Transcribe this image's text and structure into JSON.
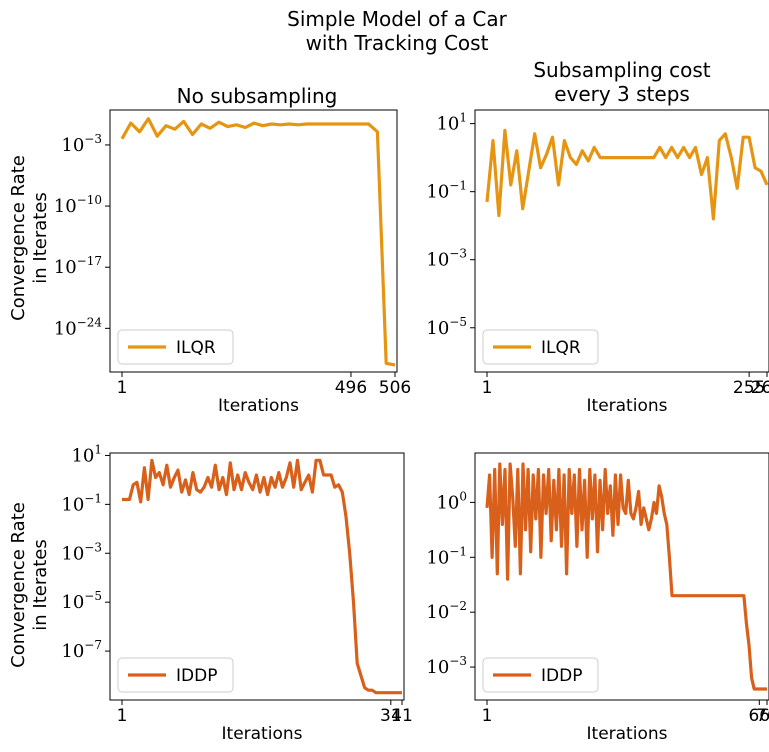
{
  "figure": {
    "title_line1": "Simple Model of a Car",
    "title_line2": "with Tracking Cost",
    "row_ylabel_line1": "Convergence Rate",
    "row_ylabel_line2": "in Iterates",
    "col1_title": "No subsampling",
    "col2_title_line1": "Subsampling cost",
    "col2_title_line2": "every 3 steps"
  },
  "colors": {
    "ilqr": "#e69512",
    "iddp": "#d9601a"
  },
  "chart_data": [
    {
      "type": "line",
      "title": "No subsampling",
      "xlabel": "Iterations",
      "ylabel": "Convergence Rate in Iterates",
      "yscale": "log",
      "ylim_exp": [
        -29,
        1
      ],
      "y_ticks": [
        {
          "exp": -3,
          "label": "10",
          "sup": "−3"
        },
        {
          "exp": -10,
          "label": "10",
          "sup": "−10"
        },
        {
          "exp": -17,
          "label": "10",
          "sup": "−17"
        },
        {
          "exp": -24,
          "label": "10",
          "sup": "−24"
        }
      ],
      "x_ticks": [
        "1",
        "496",
        "506"
      ],
      "legend": "lower-left",
      "series": [
        {
          "name": "ILQR",
          "x": [
            1,
            2,
            3,
            4,
            5,
            6,
            7,
            8,
            9,
            10,
            11,
            12,
            13,
            14,
            15,
            16,
            17,
            18,
            19,
            20,
            30,
            60,
            120,
            250,
            400,
            470,
            490,
            496,
            500,
            503,
            506,
            508
          ],
          "y_exp": [
            -2.3,
            -0.5,
            -1.5,
            0,
            -2,
            -0.8,
            -1.2,
            -0.3,
            -1.8,
            -0.6,
            -1.1,
            -0.4,
            -0.9,
            -0.7,
            -1,
            -0.5,
            -0.8,
            -0.6,
            -0.7,
            -0.6,
            -0.7,
            -0.6,
            -0.6,
            -0.6,
            -0.6,
            -0.6,
            -0.6,
            -0.6,
            -0.6,
            -1.5,
            -28,
            -28.2
          ]
        }
      ]
    },
    {
      "type": "line",
      "title": "Subsampling cost every 3 steps",
      "xlabel": "Iterations",
      "ylabel": "",
      "yscale": "log",
      "ylim_exp": [
        -6.3,
        1.4
      ],
      "y_ticks": [
        {
          "exp": 1,
          "label": "10",
          "sup": "1"
        },
        {
          "exp": -1,
          "label": "10",
          "sup": "−1"
        },
        {
          "exp": -3,
          "label": "10",
          "sup": "−3"
        },
        {
          "exp": -5,
          "label": "10",
          "sup": "−5"
        }
      ],
      "x_ticks": [
        "1",
        "255",
        "265"
      ],
      "legend": "lower-left",
      "series": [
        {
          "name": "ILQR",
          "x": [
            1,
            1.2,
            1.4,
            1.6,
            1.8,
            2,
            2.3,
            2.6,
            3,
            3.5,
            4,
            4.5,
            5,
            6,
            7,
            8,
            9,
            10,
            11,
            12,
            14,
            16,
            18,
            20,
            30,
            60,
            120,
            180,
            220,
            230,
            235,
            240,
            245,
            248,
            250,
            252,
            253,
            254,
            255,
            256,
            257,
            258,
            259,
            260,
            261,
            262,
            265,
            266
          ],
          "y_exp": [
            -1.3,
            0.5,
            -1.7,
            0.8,
            -0.8,
            0.2,
            -1.5,
            -0.4,
            0.7,
            -0.3,
            0.1,
            0.6,
            -0.8,
            0.5,
            0,
            -0.2,
            0.2,
            -0.1,
            0.3,
            0,
            0,
            0,
            0,
            0,
            0,
            0,
            0,
            0,
            0,
            0.3,
            0,
            0.3,
            0,
            0.3,
            0,
            0.3,
            -0.5,
            0,
            -1.8,
            0.5,
            0.7,
            0,
            -0.9,
            0.6,
            0.6,
            -0.3,
            -0.4,
            -0.8
          ]
        }
      ]
    },
    {
      "type": "line",
      "title": "",
      "xlabel": "Iterations",
      "ylabel": "Convergence Rate in Iterates",
      "yscale": "log",
      "ylim_exp": [
        -9,
        1.1
      ],
      "y_ticks": [
        {
          "exp": 1,
          "label": "10",
          "sup": "1"
        },
        {
          "exp": -1,
          "label": "10",
          "sup": "−1"
        },
        {
          "exp": -3,
          "label": "10",
          "sup": "−3"
        },
        {
          "exp": -5,
          "label": "10",
          "sup": "−5"
        },
        {
          "exp": -7,
          "label": "10",
          "sup": "−7"
        }
      ],
      "x_ticks": [
        "1",
        "31",
        "41"
      ],
      "legend": "lower-left",
      "series": [
        {
          "name": "IDDP",
          "x": [
            1,
            1.3,
            1.5,
            1.7,
            1.9,
            2.2,
            2.5,
            2.8,
            3.1,
            3.4,
            3.7,
            4,
            4.3,
            4.6,
            5,
            5.3,
            5.6,
            6,
            6.3,
            6.6,
            7,
            7.3,
            7.6,
            8,
            8.3,
            8.6,
            9,
            9.3,
            9.6,
            10,
            10.5,
            11,
            11.5,
            12,
            12.5,
            13,
            13.5,
            14,
            14.5,
            15,
            15.5,
            16,
            16.5,
            17,
            17.5,
            18,
            18.5,
            19,
            19.5,
            20,
            20.5,
            21,
            21.5,
            22,
            23,
            24,
            25,
            26,
            27,
            28,
            29,
            30,
            31,
            32,
            33,
            34,
            35,
            36,
            37,
            38,
            39,
            40,
            40.5,
            41,
            41.5,
            42
          ],
          "y_exp": [
            -0.8,
            -0.8,
            -0.8,
            -0.2,
            -0.1,
            -0.9,
            0.5,
            -0.8,
            0.8,
            0.1,
            0.3,
            -0.2,
            0.6,
            -0.3,
            0.1,
            0.4,
            -0.5,
            0,
            -0.6,
            0.3,
            -0.4,
            -0.5,
            -0.3,
            0.1,
            -0.3,
            0.6,
            -0.4,
            0.1,
            -0.6,
            0.7,
            -0.4,
            0.2,
            -0.4,
            0.3,
            -0.1,
            -0.4,
            0.2,
            -0.5,
            0.1,
            -0.6,
            0.1,
            -0.3,
            0.3,
            -0.3,
            0.1,
            0.7,
            -0.3,
            0.8,
            -0.4,
            -0.1,
            0.2,
            -0.5,
            0.8,
            0.8,
            0.2,
            0.2,
            0.2,
            -0.3,
            -0.2,
            -0.5,
            -1.5,
            -3,
            -5,
            -7.5,
            -8,
            -8.5,
            -8.6,
            -8.6,
            -8.7,
            -8.7,
            -8.7,
            -8.7,
            -8.7,
            -8.7,
            -8.7,
            -8.7
          ]
        }
      ]
    },
    {
      "type": "line",
      "title": "",
      "xlabel": "Iterations",
      "ylabel": "",
      "yscale": "log",
      "ylim_exp": [
        -3.6,
        0.9
      ],
      "y_ticks": [
        {
          "exp": 0,
          "label": "10",
          "sup": "0"
        },
        {
          "exp": -1,
          "label": "10",
          "sup": "−1"
        },
        {
          "exp": -2,
          "label": "10",
          "sup": "−2"
        },
        {
          "exp": -3,
          "label": "10",
          "sup": "−3"
        }
      ],
      "x_ticks": [
        "1",
        "66",
        "76"
      ],
      "legend": "lower-left",
      "series": [
        {
          "name": "IDDP",
          "x": [
            1,
            1.4,
            1.8,
            2.2,
            2.6,
            3,
            3.4,
            3.8,
            4.2,
            4.6,
            5,
            5.4,
            5.8,
            6.2,
            6.6,
            7,
            7.4,
            7.8,
            8.2,
            8.6,
            9,
            9.4,
            9.8,
            10.2,
            10.6,
            11,
            11.4,
            11.8,
            12.2,
            12.6,
            13,
            13.4,
            13.8,
            14.2,
            14.6,
            15,
            15.4,
            15.8,
            16.2,
            16.6,
            17,
            17.4,
            17.8,
            18.2,
            18.6,
            19,
            19.4,
            19.8,
            20.2,
            20.6,
            21,
            21.4,
            21.8,
            22.2,
            22.6,
            23,
            24,
            25,
            26,
            27,
            28,
            29,
            30,
            31,
            32,
            33,
            34,
            35,
            36,
            37,
            38,
            39,
            40,
            41,
            42,
            43,
            44,
            45,
            46,
            47,
            48,
            49,
            50,
            51,
            52,
            53,
            54,
            55,
            56,
            57,
            58,
            59,
            60,
            61,
            62,
            63,
            64,
            65,
            66,
            67,
            68,
            69,
            70,
            71,
            72,
            73,
            74,
            75,
            76,
            77
          ],
          "y_exp": [
            -0.1,
            0.5,
            -1,
            0.6,
            -1.3,
            0.7,
            -0.4,
            0.6,
            -1.4,
            0.7,
            0.1,
            -0.8,
            0.6,
            -1.3,
            0.7,
            -0.5,
            0.6,
            -0.9,
            0.5,
            -0.3,
            0.6,
            -1,
            0.5,
            -0.2,
            0.6,
            -0.7,
            0.4,
            -0.5,
            0.6,
            -0.8,
            0.5,
            -1.3,
            0.6,
            -0.2,
            0.5,
            -0.8,
            0.6,
            -0.5,
            0.4,
            -1,
            0.6,
            -0.3,
            0.5,
            -0.9,
            0.4,
            -0.5,
            0.6,
            -0.2,
            0.3,
            -0.6,
            0.5,
            -0.4,
            0.5,
            -0.1,
            -0.2,
            0.4,
            -0.2,
            -0.3,
            -0.1,
            0.2,
            -0.4,
            -0.1,
            -0.3,
            -0.5,
            -0.3,
            0,
            -0.2,
            0.3,
            0.1,
            -0.2,
            -0.4,
            -1,
            -1.7,
            -1.7,
            -1.7,
            -1.7,
            -1.7,
            -1.7,
            -1.7,
            -1.7,
            -1.7,
            -1.7,
            -1.7,
            -1.7,
            -1.7,
            -1.7,
            -1.7,
            -1.7,
            -1.7,
            -1.7,
            -1.7,
            -1.7,
            -1.7,
            -1.7,
            -1.7,
            -1.7,
            -1.7,
            -1.7,
            -1.7,
            -1.7,
            -1.7,
            -2.2,
            -2.6,
            -3.2,
            -3.4,
            -3.4,
            -3.4,
            -3.4,
            -3.4,
            -3.4
          ]
        }
      ]
    }
  ]
}
